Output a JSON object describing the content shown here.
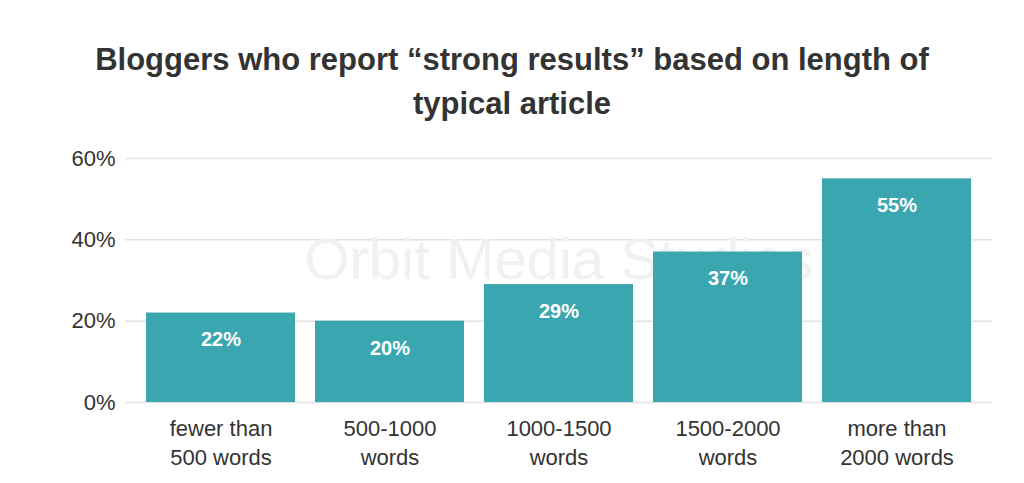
{
  "chart_data": {
    "type": "bar",
    "title": "Bloggers who report “strong results” based on length of typical article",
    "categories": [
      "fewer than\n500 words",
      "500-1000\nwords",
      "1000-1500\nwords",
      "1500-2000\nwords",
      "more than\n2000 words"
    ],
    "values": [
      22,
      20,
      29,
      37,
      55
    ],
    "value_labels": [
      "22%",
      "20%",
      "29%",
      "37%",
      "55%"
    ],
    "data_labels": true,
    "color": "#3aa6b0",
    "ylim": [
      0,
      60
    ],
    "yticks": [
      {
        "value": 0,
        "label": "0%"
      },
      {
        "value": 20,
        "label": "20%"
      },
      {
        "value": 40,
        "label": "40%"
      },
      {
        "value": 60,
        "label": "60%"
      }
    ],
    "grid": true,
    "watermark": "Orbit Media Studios"
  }
}
